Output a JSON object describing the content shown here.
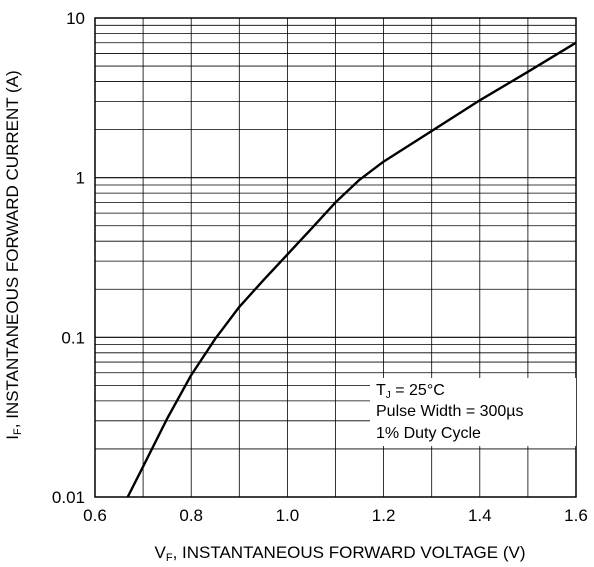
{
  "chart_data": {
    "type": "line",
    "xlabel_main": "V",
    "xlabel_sub": "F",
    "xlabel_rest": ", INSTANTANEOUS FORWARD VOLTAGE (V)",
    "ylabel_main": "I",
    "ylabel_sub": "F",
    "ylabel_rest": ", INSTANTANEOUS FORWARD CURRENT (A)",
    "xlim": [
      0.6,
      1.6
    ],
    "ylim": [
      0.01,
      10
    ],
    "yscale": "log",
    "grid": true,
    "x_ticks": [
      "0.6",
      "0.8",
      "1.0",
      "1.2",
      "1.4",
      "1.6"
    ],
    "y_ticks": [
      "0.01",
      "0.1",
      "1",
      "10"
    ],
    "annotation": {
      "line1_main": "T",
      "line1_sub": "J",
      "line1_rest": " = 25°C",
      "line2": "Pulse Width = 300µs",
      "line3": "1% Duty Cycle"
    },
    "series": [
      {
        "x": [
          0.668,
          0.7,
          0.75,
          0.8,
          0.85,
          0.9,
          0.95,
          1.0,
          1.05,
          1.1,
          1.15,
          1.2,
          1.3,
          1.4,
          1.5,
          1.6
        ],
        "y": [
          0.01,
          0.0155,
          0.031,
          0.058,
          0.098,
          0.155,
          0.228,
          0.33,
          0.48,
          0.7,
          0.97,
          1.26,
          1.96,
          3.05,
          4.6,
          7.0
        ]
      }
    ]
  }
}
